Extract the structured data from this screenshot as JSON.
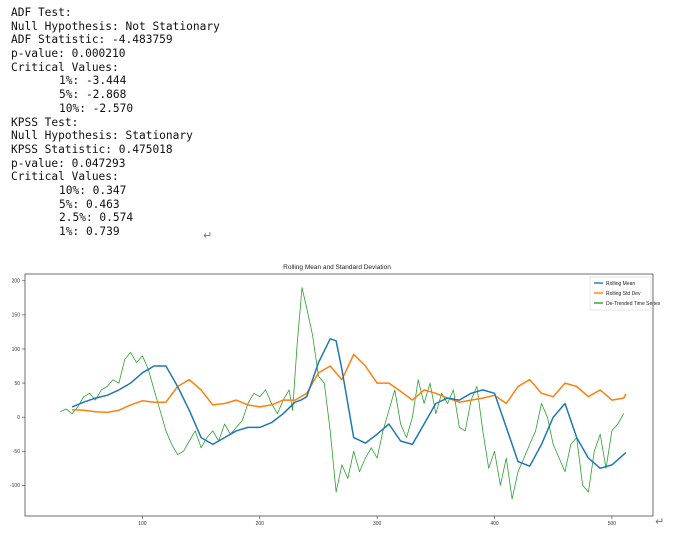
{
  "console": {
    "adf_title": "ADF Test:",
    "adf_null": "Null Hypothesis: Not Stationary",
    "adf_stat": "ADF Statistic: -4.483759",
    "adf_p": "p-value: 0.000210",
    "adf_cv_label": "Critical Values:",
    "adf_cv": [
      "1%: -3.444",
      "5%: -2.868",
      "10%: -2.570"
    ],
    "kpss_title": "KPSS Test:",
    "kpss_null": "Null Hypothesis: Stationary",
    "kpss_stat": "KPSS Statistic: 0.475018",
    "kpss_p": "p-value: 0.047293",
    "kpss_cv_label": "Critical Values:",
    "kpss_cv": [
      "10%: 0.347",
      "5%: 0.463",
      "2.5%: 0.574",
      "1%: 0.739"
    ]
  },
  "return_glyph": "↵",
  "chart_data": {
    "type": "line",
    "title": "Rolling Mean and Standard Deviation",
    "xlim": [
      0,
      535
    ],
    "ylim": [
      -145,
      210
    ],
    "xticks": [
      100,
      200,
      300,
      400,
      500
    ],
    "yticks": [
      -100,
      -50,
      0,
      50,
      100,
      150,
      200
    ],
    "legend_position": "top-right",
    "grid": false,
    "series": [
      {
        "name": "Rolling Mean",
        "color": "#1f77b4",
        "x": [
          40,
          50,
          60,
          70,
          80,
          90,
          100,
          110,
          120,
          130,
          140,
          150,
          160,
          170,
          180,
          190,
          200,
          210,
          220,
          230,
          235,
          240,
          250,
          260,
          265,
          270,
          280,
          290,
          300,
          310,
          320,
          330,
          340,
          350,
          360,
          370,
          380,
          390,
          400,
          410,
          420,
          430,
          440,
          450,
          460,
          470,
          480,
          490,
          500,
          510,
          512
        ],
        "y": [
          15,
          22,
          28,
          32,
          40,
          50,
          65,
          75,
          75,
          45,
          10,
          -30,
          -40,
          -30,
          -20,
          -15,
          -15,
          -8,
          5,
          22,
          25,
          30,
          80,
          115,
          112,
          70,
          -30,
          -38,
          -25,
          -10,
          -35,
          -40,
          -10,
          20,
          28,
          25,
          35,
          40,
          35,
          -15,
          -65,
          -72,
          -40,
          0,
          20,
          -30,
          -60,
          -75,
          -70,
          -55,
          -52
        ]
      },
      {
        "name": "Rolling Std Dev",
        "color": "#ff7f0e",
        "x": [
          40,
          50,
          60,
          70,
          80,
          90,
          100,
          110,
          120,
          130,
          140,
          150,
          160,
          170,
          180,
          190,
          200,
          210,
          220,
          230,
          240,
          250,
          260,
          270,
          280,
          290,
          300,
          310,
          320,
          330,
          340,
          350,
          360,
          370,
          380,
          390,
          400,
          410,
          420,
          430,
          440,
          450,
          460,
          470,
          480,
          490,
          500,
          510,
          512
        ],
        "y": [
          11,
          10,
          8,
          7,
          10,
          18,
          24,
          22,
          22,
          45,
          55,
          40,
          18,
          20,
          25,
          18,
          15,
          18,
          25,
          25,
          35,
          65,
          75,
          55,
          92,
          75,
          50,
          50,
          38,
          25,
          40,
          35,
          28,
          22,
          25,
          28,
          32,
          20,
          45,
          55,
          35,
          30,
          50,
          45,
          30,
          40,
          25,
          28,
          34
        ]
      },
      {
        "name": "De-Trended Time Series",
        "color": "#2ca02c",
        "x": [
          30,
          35,
          40,
          45,
          50,
          55,
          60,
          65,
          70,
          75,
          80,
          85,
          90,
          95,
          100,
          105,
          110,
          115,
          120,
          125,
          130,
          135,
          140,
          145,
          150,
          155,
          160,
          165,
          170,
          175,
          180,
          185,
          190,
          195,
          200,
          205,
          210,
          215,
          220,
          225,
          228,
          232,
          236,
          240,
          245,
          250,
          255,
          260,
          265,
          270,
          275,
          280,
          285,
          290,
          295,
          300,
          305,
          310,
          315,
          320,
          325,
          330,
          335,
          340,
          345,
          350,
          355,
          360,
          365,
          370,
          375,
          380,
          385,
          390,
          395,
          400,
          405,
          410,
          415,
          420,
          425,
          430,
          435,
          440,
          445,
          450,
          455,
          460,
          465,
          470,
          475,
          480,
          485,
          490,
          495,
          500,
          505,
          510
        ],
        "y": [
          8,
          12,
          5,
          15,
          30,
          35,
          25,
          40,
          45,
          55,
          50,
          85,
          95,
          80,
          90,
          70,
          40,
          10,
          -20,
          -40,
          -55,
          -50,
          -35,
          -20,
          -45,
          -30,
          -20,
          -35,
          -10,
          -25,
          -15,
          -5,
          20,
          35,
          30,
          40,
          20,
          5,
          25,
          40,
          10,
          110,
          190,
          160,
          120,
          60,
          50,
          -20,
          -110,
          -70,
          -90,
          -50,
          -80,
          -60,
          -45,
          -60,
          -20,
          10,
          40,
          -10,
          -30,
          0,
          55,
          20,
          50,
          5,
          35,
          20,
          40,
          -15,
          -20,
          25,
          45,
          -20,
          -75,
          -50,
          -100,
          -60,
          -120,
          -80,
          -60,
          -40,
          -20,
          20,
          0,
          -40,
          -60,
          -80,
          -40,
          -30,
          -100,
          -110,
          -50,
          -25,
          -75,
          -20,
          -10,
          5
        ]
      }
    ]
  }
}
